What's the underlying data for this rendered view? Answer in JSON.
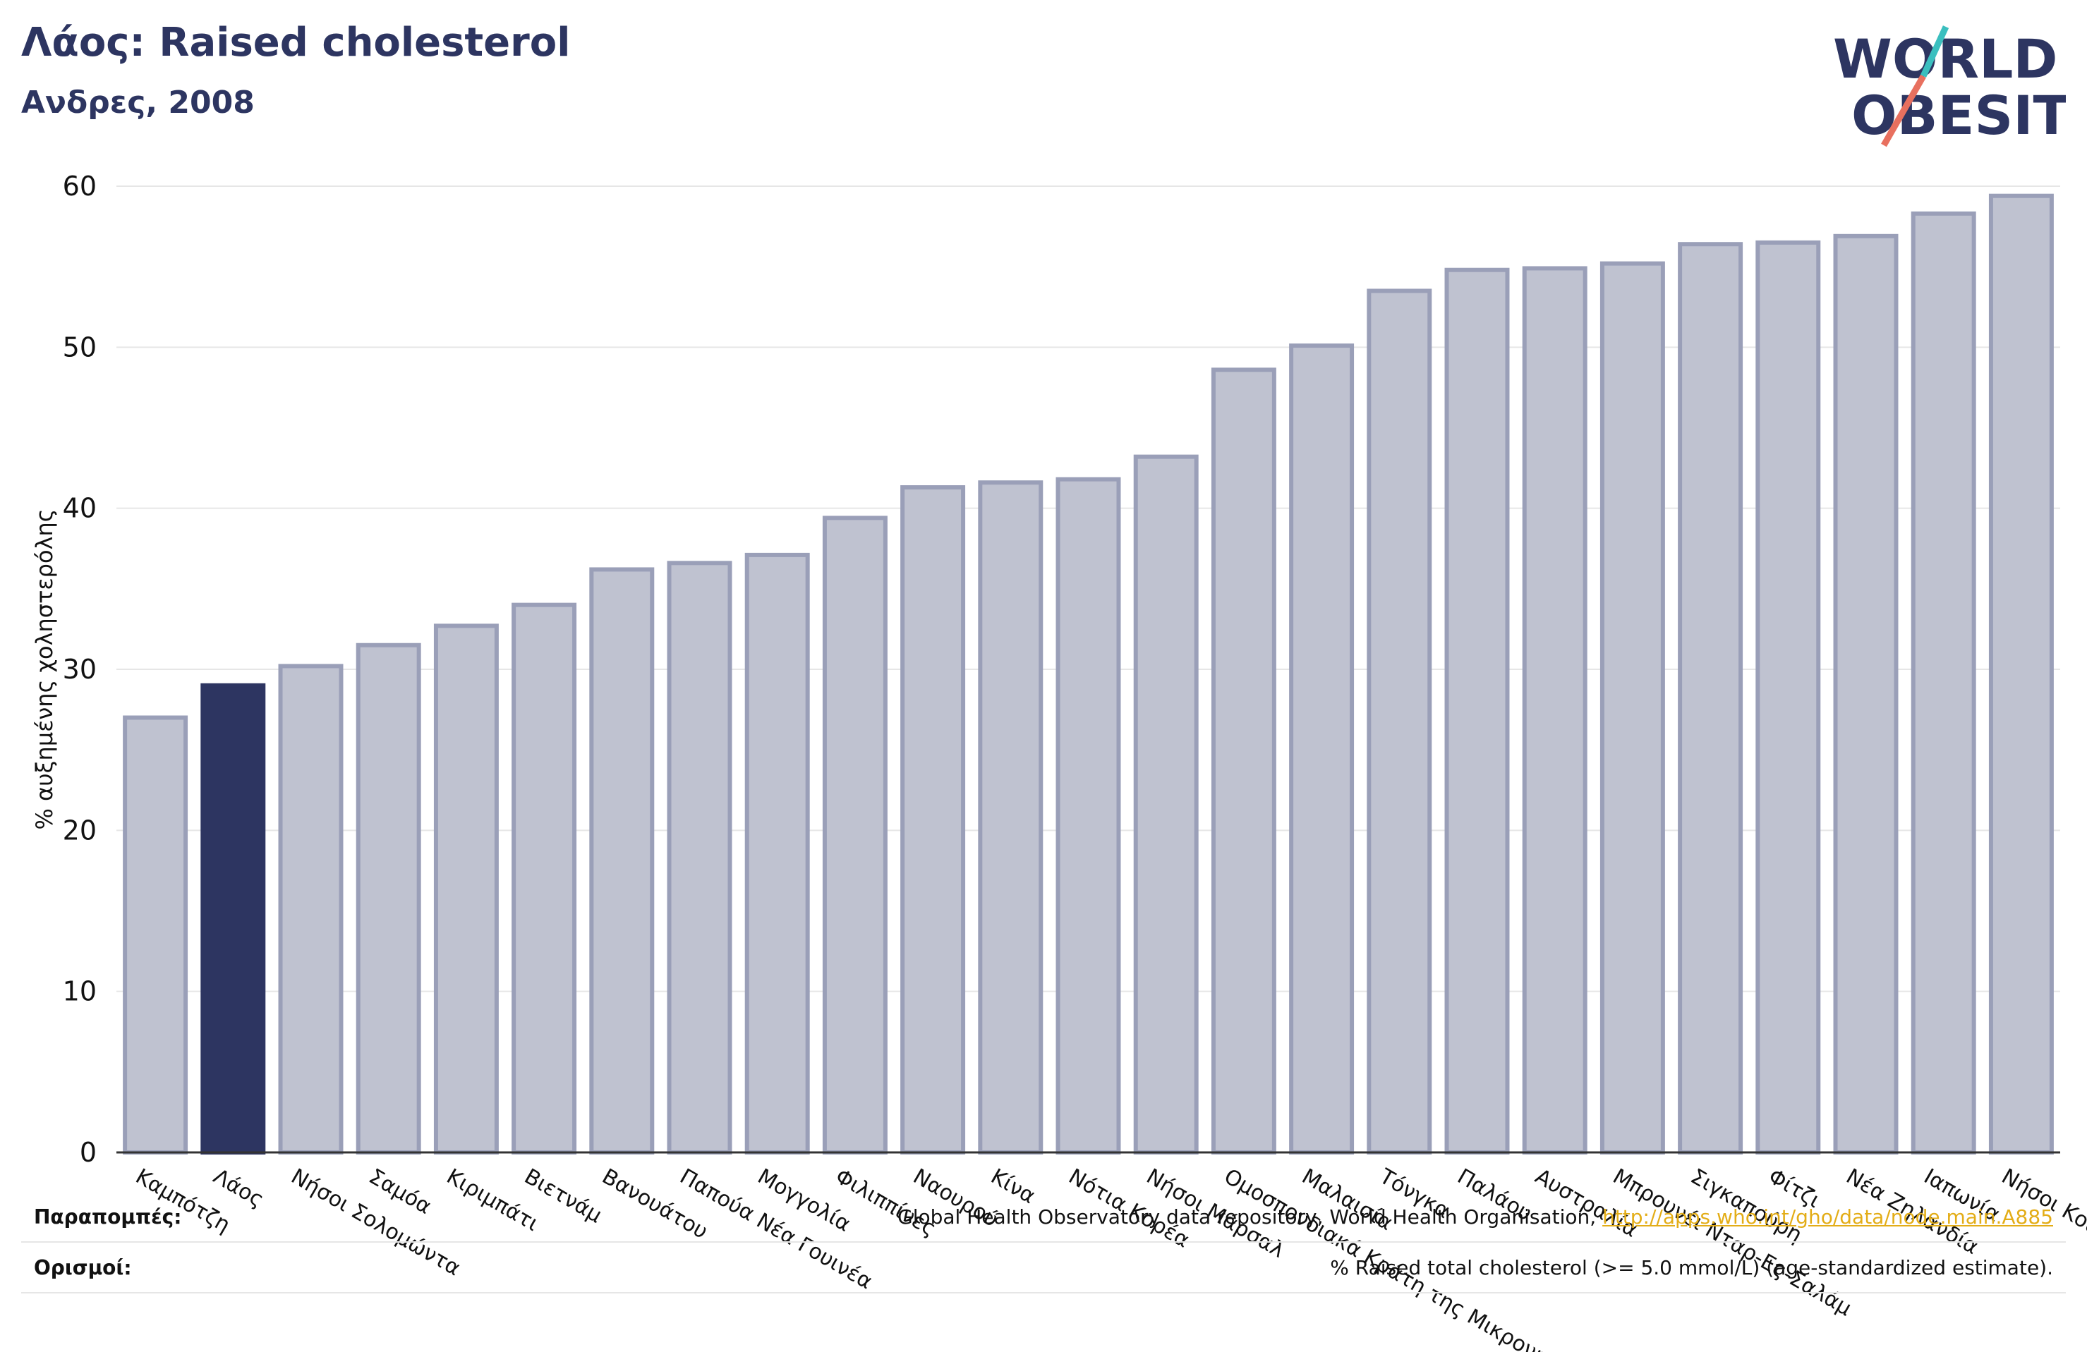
{
  "header": {
    "title": "Λάος: Raised cholesterol",
    "subtitle": "Ανδρες, 2008"
  },
  "logo": {
    "line1": "WORLD",
    "line2": "OBESITY"
  },
  "colors": {
    "highlight": "#2d3561",
    "bar_fill": "#bfc2d0",
    "bar_stroke": "#9a9fb8",
    "grid": "#e6e6e6",
    "logo_teal": "#3bbfbf",
    "logo_red": "#e8705f"
  },
  "chart_data": {
    "type": "bar",
    "ylabel": "% αυξημένης χοληστερόλης",
    "ylim": [
      0,
      60
    ],
    "yticks": [
      0,
      10,
      20,
      30,
      40,
      50,
      60
    ],
    "grid": true,
    "highlight": "Λάος",
    "categories": [
      "Καμπότζη",
      "Λάος",
      "Νήσοι Σολομώντα",
      "Σαμόα",
      "Κιριμπάτι",
      "Βιετνάμ",
      "Βανουάτου",
      "Παπούα Νέα Γουινέα",
      "Μογγολία",
      "Φιλιππίνες",
      "Ναουρού",
      "Κίνα",
      "Νότια Κορέα",
      "Νήσοι Μάρσαλ",
      "Ομοσπονδιακά Κράτη της Μικρονησίας",
      "Μαλαισία",
      "Τόνγκα",
      "Παλάου",
      "Αυστραλία",
      "Μπρουνέι Νταρ-Ες-Σαλάμ",
      "Σιγκαπούρη",
      "Φίτζι",
      "Νέα Ζηλανδία",
      "Ιαπωνία",
      "Νήσοι Κουκ"
    ],
    "values": [
      27.0,
      29.0,
      30.2,
      31.5,
      32.7,
      34.0,
      36.2,
      36.6,
      37.1,
      39.4,
      41.3,
      41.6,
      41.8,
      43.2,
      48.6,
      50.1,
      53.5,
      54.8,
      54.9,
      55.2,
      56.4,
      56.5,
      56.9,
      58.3,
      59.4
    ]
  },
  "references": {
    "sources_label": "Παραπομπές:",
    "sources_text": "Global Health Observatory data repository, World Health Organisation, ",
    "sources_link": "http://apps.who.int/gho/data/node.main.A885",
    "definitions_label": "Ορισμοί:",
    "definitions_text": "% Raised total cholesterol (>= 5.0 mmol/L) (age-standardized estimate)."
  }
}
